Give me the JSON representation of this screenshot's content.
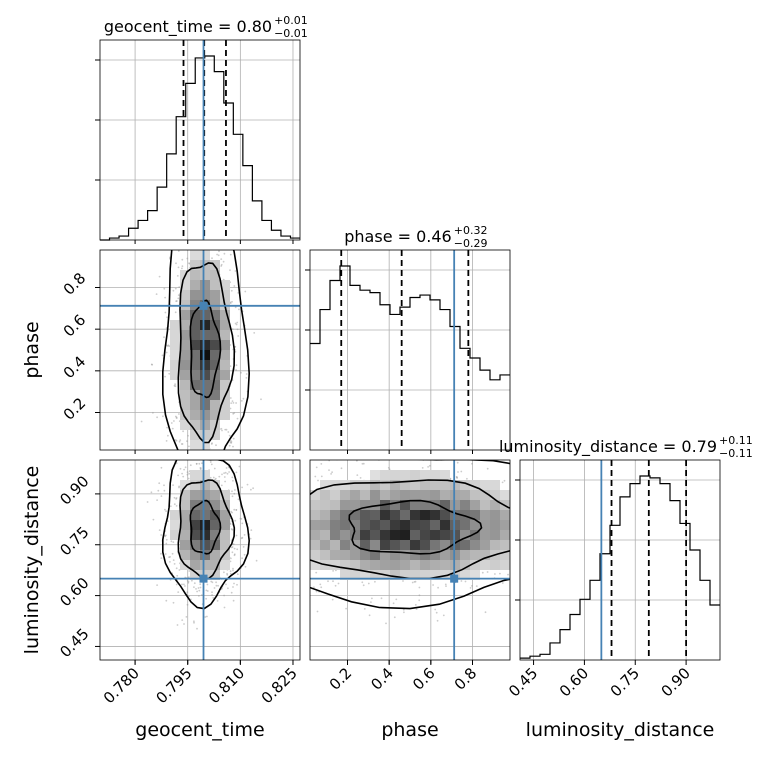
{
  "chart_data": {
    "type": "corner",
    "parameters": [
      "geocent_time",
      "phase",
      "luminosity_distance"
    ],
    "axis_labels": {
      "geocent_time": "geocent_time",
      "phase": "phase",
      "luminosity_distance": "luminosity_distance"
    },
    "titles": [
      {
        "param": "geocent_time",
        "name": "geocent_time",
        "median": "0.80",
        "plus": "+0.01",
        "minus": "−0.01"
      },
      {
        "param": "phase",
        "name": "phase",
        "median": "0.46",
        "plus": "+0.32",
        "minus": "−0.29"
      },
      {
        "param": "luminosity_distance",
        "name": "luminosity_distance",
        "median": "0.79",
        "plus": "+0.11",
        "minus": "−0.11"
      }
    ],
    "ranges": {
      "geocent_time": [
        0.77,
        0.827
      ],
      "phase": [
        0.02,
        0.98
      ],
      "luminosity_distance": [
        0.41,
        1.0
      ]
    },
    "ticks": {
      "geocent_time": {
        "values": [
          0.78,
          0.795,
          0.81,
          0.825
        ],
        "labels": [
          "0.780",
          "0.795",
          "0.810",
          "0.825"
        ]
      },
      "phase": {
        "values": [
          0.2,
          0.4,
          0.6,
          0.8
        ],
        "labels": [
          "0.2",
          "0.4",
          "0.6",
          "0.8"
        ]
      },
      "luminosity_distance": {
        "values": [
          0.45,
          0.6,
          0.75,
          0.9
        ],
        "labels": [
          "0.45",
          "0.60",
          "0.75",
          "0.90"
        ]
      }
    },
    "truths": {
      "geocent_time": 0.7995,
      "phase": 0.712,
      "luminosity_distance": 0.65
    },
    "quantiles": {
      "geocent_time": [
        0.7938,
        0.7997,
        0.8059
      ],
      "phase": [
        0.17,
        0.46,
        0.78
      ],
      "luminosity_distance": [
        0.68,
        0.79,
        0.9
      ]
    },
    "histograms": {
      "geocent_time": [
        0,
        1,
        2,
        6,
        10,
        15,
        27,
        44,
        63,
        80,
        93,
        94,
        86,
        70,
        54,
        38,
        20,
        10,
        5,
        2,
        1
      ],
      "phase": [
        44,
        58,
        70,
        76,
        68,
        66,
        65,
        60,
        56,
        59,
        63,
        64,
        62,
        58,
        51,
        42,
        38,
        33,
        29,
        31
      ],
      "luminosity_distance": [
        1,
        2,
        3,
        9,
        16,
        24,
        32,
        42,
        56,
        71,
        86,
        93,
        97,
        96,
        93,
        84,
        72,
        58,
        42,
        29
      ]
    },
    "grid": true,
    "truth_color": "#4682b4",
    "contour_color": "#000000"
  }
}
